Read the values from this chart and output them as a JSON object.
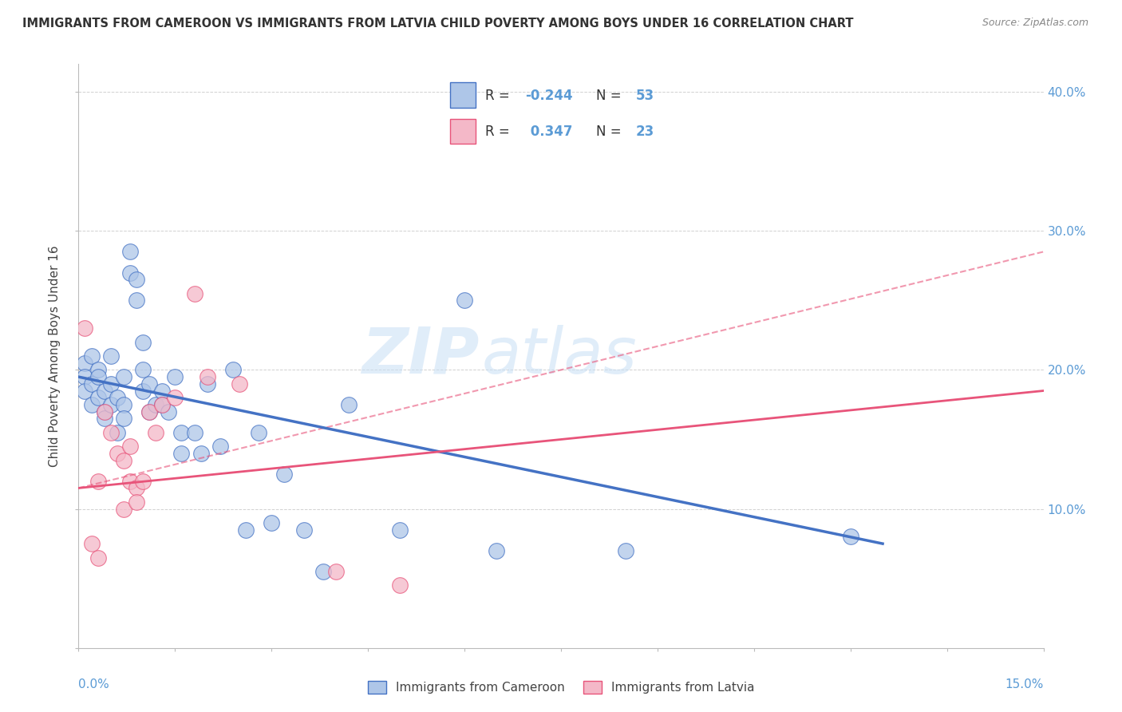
{
  "title": "IMMIGRANTS FROM CAMEROON VS IMMIGRANTS FROM LATVIA CHILD POVERTY AMONG BOYS UNDER 16 CORRELATION CHART",
  "source": "Source: ZipAtlas.com",
  "ylabel": "Child Poverty Among Boys Under 16",
  "xlim": [
    0.0,
    0.15
  ],
  "ylim": [
    0.0,
    0.42
  ],
  "R_cameroon": -0.244,
  "N_cameroon": 53,
  "R_latvia": 0.347,
  "N_latvia": 23,
  "cameroon_color": "#aec6e8",
  "latvia_color": "#f4b8c8",
  "trend_cameroon_color": "#4472c4",
  "trend_latvia_color": "#e8547a",
  "watermark_zip": "ZIP",
  "watermark_atlas": "atlas",
  "cameroon_scatter_x": [
    0.001,
    0.001,
    0.001,
    0.002,
    0.002,
    0.002,
    0.003,
    0.003,
    0.003,
    0.004,
    0.004,
    0.004,
    0.005,
    0.005,
    0.005,
    0.006,
    0.006,
    0.007,
    0.007,
    0.007,
    0.008,
    0.008,
    0.009,
    0.009,
    0.01,
    0.01,
    0.01,
    0.011,
    0.011,
    0.012,
    0.013,
    0.013,
    0.014,
    0.015,
    0.016,
    0.016,
    0.018,
    0.019,
    0.02,
    0.022,
    0.024,
    0.026,
    0.028,
    0.03,
    0.032,
    0.035,
    0.038,
    0.042,
    0.05,
    0.06,
    0.065,
    0.085,
    0.12
  ],
  "cameroon_scatter_y": [
    0.205,
    0.195,
    0.185,
    0.21,
    0.19,
    0.175,
    0.2,
    0.18,
    0.195,
    0.185,
    0.17,
    0.165,
    0.19,
    0.175,
    0.21,
    0.18,
    0.155,
    0.195,
    0.175,
    0.165,
    0.27,
    0.285,
    0.265,
    0.25,
    0.2,
    0.22,
    0.185,
    0.17,
    0.19,
    0.175,
    0.185,
    0.175,
    0.17,
    0.195,
    0.155,
    0.14,
    0.155,
    0.14,
    0.19,
    0.145,
    0.2,
    0.085,
    0.155,
    0.09,
    0.125,
    0.085,
    0.055,
    0.175,
    0.085,
    0.25,
    0.07,
    0.07,
    0.08
  ],
  "latvia_scatter_x": [
    0.001,
    0.002,
    0.003,
    0.003,
    0.004,
    0.005,
    0.006,
    0.007,
    0.007,
    0.008,
    0.008,
    0.009,
    0.009,
    0.01,
    0.011,
    0.012,
    0.013,
    0.015,
    0.018,
    0.02,
    0.025,
    0.04,
    0.05
  ],
  "latvia_scatter_y": [
    0.23,
    0.075,
    0.12,
    0.065,
    0.17,
    0.155,
    0.14,
    0.135,
    0.1,
    0.145,
    0.12,
    0.115,
    0.105,
    0.12,
    0.17,
    0.155,
    0.175,
    0.18,
    0.255,
    0.195,
    0.19,
    0.055,
    0.045
  ],
  "trend_cam_x0": 0.0,
  "trend_cam_y0": 0.195,
  "trend_cam_x1": 0.125,
  "trend_cam_y1": 0.075,
  "trend_lat_x0": 0.0,
  "trend_lat_y0": 0.115,
  "trend_lat_x1": 0.15,
  "trend_lat_y1": 0.185,
  "trend_lat_dash_x1": 0.15,
  "trend_lat_dash_y1": 0.285
}
